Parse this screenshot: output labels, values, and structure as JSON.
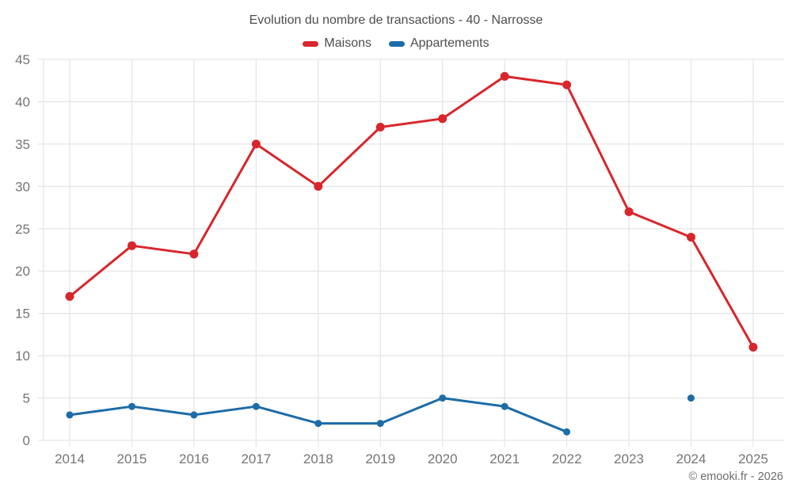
{
  "chart_data": {
    "type": "line",
    "title": "Evolution du nombre de transactions - 40 - Narrosse",
    "x": [
      "2014",
      "2015",
      "2016",
      "2017",
      "2018",
      "2019",
      "2020",
      "2021",
      "2022",
      "2023",
      "2024",
      "2025"
    ],
    "series": [
      {
        "name": "Maisons",
        "color": "#d8262c",
        "values": [
          17,
          23,
          22,
          35,
          30,
          37,
          38,
          43,
          42,
          27,
          24,
          11
        ]
      },
      {
        "name": "Appartements",
        "color": "#1c6ca8",
        "values": [
          3,
          4,
          3,
          4,
          2,
          2,
          5,
          4,
          1,
          null,
          5,
          null
        ]
      }
    ],
    "ylim": [
      0,
      45
    ],
    "ytick_step": 5,
    "yticks": [
      0,
      5,
      10,
      15,
      20,
      25,
      30,
      35,
      40,
      45
    ],
    "grid": true,
    "legend_position": "top",
    "xlabel": "",
    "ylabel": ""
  },
  "axis": {
    "tick_label_color": "#757575",
    "grid_color": "#e6e6e6"
  },
  "footer": {
    "copyright": "© emooki.fr - 2026"
  }
}
